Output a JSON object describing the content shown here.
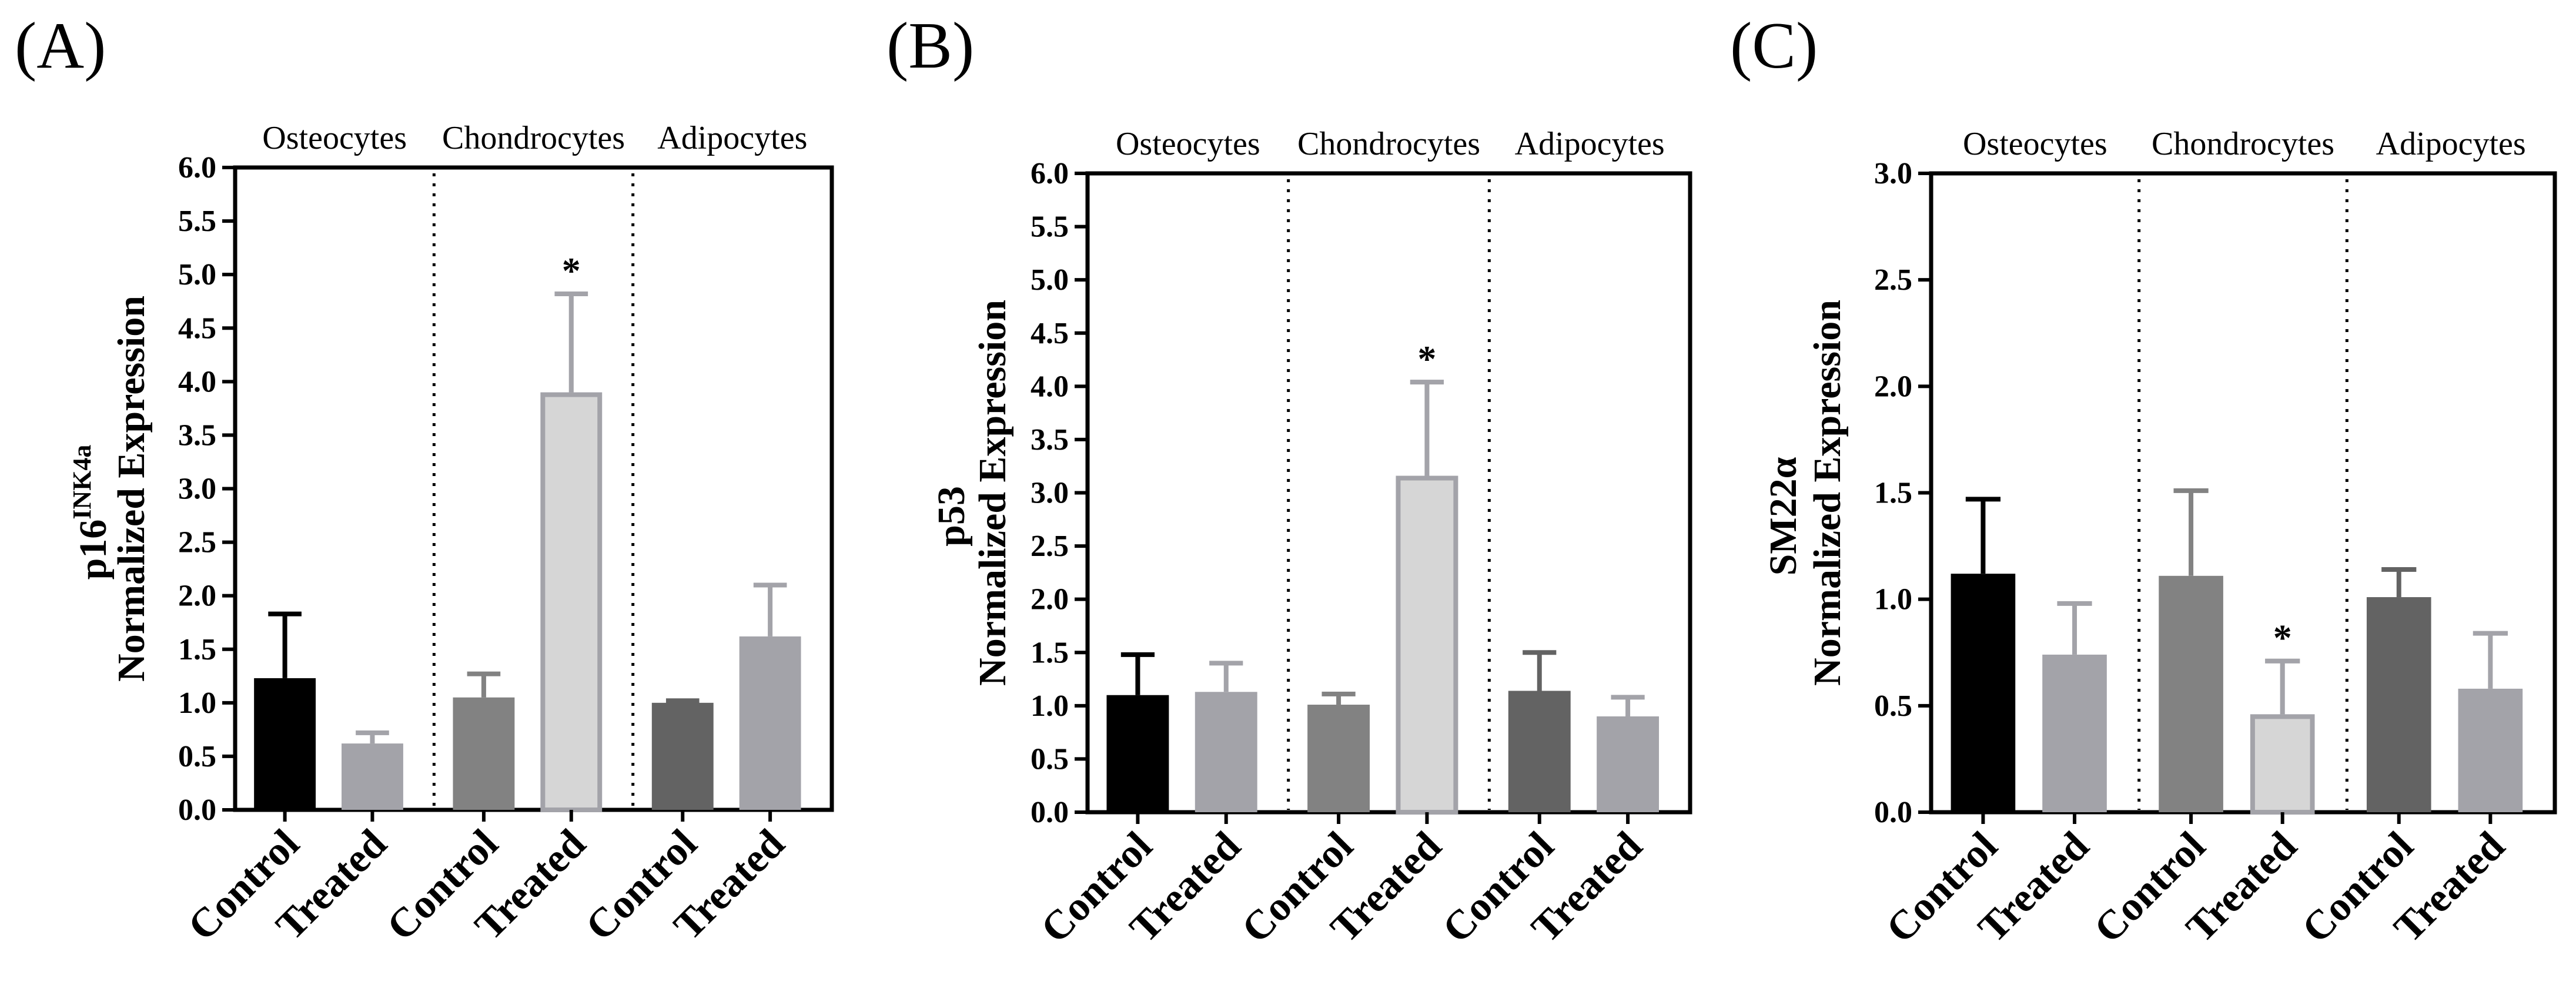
{
  "chart_data": [
    {
      "type": "bar",
      "panel_label": "(A)",
      "ylabel": "p16",
      "ylabel_sup": "INK4a",
      "ylabel2": "Normalized Expression",
      "ylim": [
        0,
        6.0
      ],
      "yticks": [
        "0.0",
        "0.5",
        "1.0",
        "1.5",
        "2.0",
        "2.5",
        "3.0",
        "3.5",
        "4.0",
        "4.5",
        "5.0",
        "5.5",
        "6.0"
      ],
      "groups": [
        "Osteocytes",
        "Chondrocytes",
        "Adipocytes"
      ],
      "categories": [
        "Control",
        "Treated",
        "Control",
        "Treated",
        "Control",
        "Treated"
      ],
      "values": [
        1.23,
        0.62,
        1.05,
        3.9,
        1.0,
        1.62
      ],
      "errors": [
        0.6,
        0.1,
        0.22,
        0.92,
        0.02,
        0.48
      ],
      "significance": [
        "",
        "",
        "",
        "*",
        "",
        ""
      ],
      "colors": [
        "#000000",
        "#a3a3a9",
        "#828282",
        "#d6d6d6",
        "#636363",
        "#a3a3a9"
      ],
      "outline": [
        false,
        false,
        false,
        true,
        false,
        false
      ]
    },
    {
      "type": "bar",
      "panel_label": "(B)",
      "ylabel": "p53",
      "ylabel_sup": "",
      "ylabel2": "Normalized Expression",
      "ylim": [
        0,
        6.0
      ],
      "yticks": [
        "0.0",
        "0.5",
        "1.0",
        "1.5",
        "2.0",
        "2.5",
        "3.0",
        "3.5",
        "4.0",
        "4.5",
        "5.0",
        "5.5",
        "6.0"
      ],
      "groups": [
        "Osteocytes",
        "Chondrocytes",
        "Adipocytes"
      ],
      "categories": [
        "Control",
        "Treated",
        "Control",
        "Treated",
        "Control",
        "Treated"
      ],
      "values": [
        1.1,
        1.13,
        1.01,
        3.16,
        1.14,
        0.9
      ],
      "errors": [
        0.38,
        0.27,
        0.1,
        0.88,
        0.36,
        0.18
      ],
      "significance": [
        "",
        "",
        "",
        "*",
        "",
        ""
      ],
      "colors": [
        "#000000",
        "#a3a3a9",
        "#828282",
        "#d6d6d6",
        "#636363",
        "#a3a3a9"
      ],
      "outline": [
        false,
        false,
        false,
        true,
        false,
        false
      ]
    },
    {
      "type": "bar",
      "panel_label": "(C)",
      "ylabel": "SM22α",
      "ylabel_sup": "",
      "ylabel2": "Normalized Expression",
      "ylim": [
        0,
        3.0
      ],
      "yticks": [
        "0.0",
        "0.5",
        "1.0",
        "1.5",
        "2.0",
        "2.5",
        "3.0"
      ],
      "groups": [
        "Osteocytes",
        "Chondrocytes",
        "Adipocytes"
      ],
      "categories": [
        "Control",
        "Treated",
        "Control",
        "Treated",
        "Control",
        "Treated"
      ],
      "values": [
        1.12,
        0.74,
        1.11,
        0.46,
        1.01,
        0.58
      ],
      "errors": [
        0.35,
        0.24,
        0.4,
        0.25,
        0.13,
        0.26
      ],
      "significance": [
        "",
        "",
        "",
        "*",
        "",
        ""
      ],
      "colors": [
        "#000000",
        "#a3a3a9",
        "#828282",
        "#d6d6d6",
        "#636363",
        "#a3a3a9"
      ],
      "outline": [
        false,
        false,
        false,
        true,
        false,
        false
      ]
    }
  ]
}
